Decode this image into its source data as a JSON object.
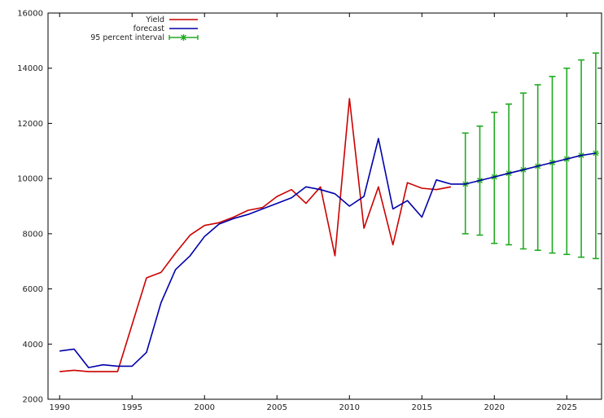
{
  "chart_data": {
    "type": "line",
    "title": "",
    "xlabel": "",
    "ylabel": "",
    "xlim": [
      1989.2,
      2027.4
    ],
    "ylim": [
      2000,
      16000
    ],
    "xticks": [
      1990,
      1995,
      2000,
      2005,
      2010,
      2015,
      2020,
      2025
    ],
    "yticks": [
      2000,
      4000,
      6000,
      8000,
      10000,
      12000,
      14000,
      16000
    ],
    "grid": false,
    "legend_position": "top-left",
    "series": [
      {
        "name": "Yield",
        "color": "#cc0000",
        "x": [
          1990,
          1991,
          1992,
          1993,
          1994,
          1995,
          1996,
          1997,
          1998,
          1999,
          2000,
          2001,
          2002,
          2003,
          2004,
          2005,
          2006,
          2007,
          2008,
          2009,
          2010,
          2011,
          2012,
          2013,
          2014,
          2015,
          2016,
          2017
        ],
        "y": [
          3000,
          3050,
          3000,
          3000,
          3000,
          4700,
          6400,
          6600,
          7300,
          7950,
          8300,
          8400,
          8600,
          8850,
          8950,
          9350,
          9600,
          9100,
          9700,
          7200,
          12900,
          8200,
          9700,
          7600,
          9850,
          9650,
          9600,
          9700
        ]
      },
      {
        "name": "forecast",
        "color": "#0000aa",
        "x": [
          1990,
          1991,
          1992,
          1993,
          1994,
          1995,
          1996,
          1997,
          1998,
          1999,
          2000,
          2001,
          2002,
          2003,
          2004,
          2005,
          2006,
          2007,
          2008,
          2009,
          2010,
          2011,
          2012,
          2013,
          2014,
          2015,
          2016,
          2017,
          2018,
          2019,
          2020,
          2021,
          2022,
          2023,
          2024,
          2025,
          2026,
          2027
        ],
        "y": [
          3750,
          3820,
          3150,
          3250,
          3200,
          3200,
          3700,
          5500,
          6700,
          7200,
          7900,
          8350,
          8550,
          8700,
          8900,
          9100,
          9300,
          9700,
          9600,
          9450,
          9000,
          9350,
          11450,
          8900,
          9200,
          8600,
          9950,
          9800,
          9800,
          9930,
          10060,
          10190,
          10320,
          10450,
          10580,
          10710,
          10840,
          10920
        ]
      }
    ],
    "interval": {
      "name": "95 percent interval",
      "color": "#22aa22",
      "x": [
        2018,
        2019,
        2020,
        2021,
        2022,
        2023,
        2024,
        2025,
        2026,
        2027
      ],
      "center": [
        9800,
        9930,
        10060,
        10190,
        10320,
        10450,
        10580,
        10710,
        10840,
        10920
      ],
      "low": [
        8000,
        7950,
        7650,
        7600,
        7450,
        7400,
        7300,
        7250,
        7150,
        7100
      ],
      "high": [
        11650,
        11900,
        12400,
        12700,
        13100,
        13400,
        13700,
        14000,
        14300,
        14550
      ]
    }
  }
}
